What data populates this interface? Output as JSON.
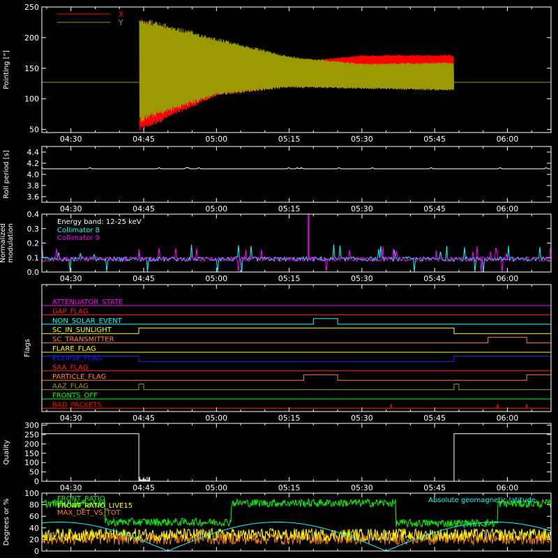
{
  "colors": {
    "background": "#000000",
    "axes": "#ffffff",
    "x_series": "#ff0000",
    "y_series": "#9a9a00",
    "collimator8": "#00ffff",
    "collimator9": "#ff00ff",
    "green": "#00ff00",
    "orange": "#ff8000",
    "cyan": "#00ffff",
    "yellow": "#ffff00"
  },
  "x_axis": {
    "start": "04:24",
    "end": "06:09",
    "tick_labels": [
      "04:30",
      "04:45",
      "05:00",
      "05:15",
      "05:30",
      "05:45",
      "06:00"
    ],
    "tick_minutes": [
      270,
      285,
      300,
      315,
      330,
      345,
      360
    ],
    "min_minutes": 264,
    "max_minutes": 369
  },
  "chart_data": [
    {
      "type": "line",
      "panel": "pointing",
      "ylabel": "Pointing [\"]",
      "ylim": [
        45,
        250
      ],
      "yticks": [
        50,
        100,
        150,
        200,
        250
      ],
      "legend": [
        {
          "name": "X",
          "color": "#ff0000"
        },
        {
          "name": "Y",
          "color": "#9a9a00"
        }
      ],
      "series": [
        {
          "name": "X",
          "baseline": 127,
          "oscillation_start": "04:44",
          "oscillation_end": "05:49",
          "envelope": [
            {
              "t": "04:44",
              "min": 45,
              "max": 235
            },
            {
              "t": "05:00",
              "min": 105,
              "max": 155
            },
            {
              "t": "05:15",
              "min": 120,
              "max": 160
            },
            {
              "t": "05:30",
              "min": 120,
              "max": 172
            },
            {
              "t": "05:49",
              "min": 120,
              "max": 172
            }
          ]
        },
        {
          "name": "Y",
          "baseline": 127,
          "oscillation_start": "04:44",
          "oscillation_end": "05:49",
          "envelope": [
            {
              "t": "04:44",
              "min": 60,
              "max": 235
            },
            {
              "t": "05:00",
              "min": 105,
              "max": 200
            },
            {
              "t": "05:15",
              "min": 118,
              "max": 170
            },
            {
              "t": "05:30",
              "min": 116,
              "max": 158
            },
            {
              "t": "05:49",
              "min": 113,
              "max": 160
            }
          ]
        }
      ]
    },
    {
      "type": "line",
      "panel": "roll_period",
      "ylabel": "Roll period [s]",
      "ylim": [
        3.5,
        4.5
      ],
      "yticks": [
        3.6,
        3.8,
        4.0,
        4.2,
        4.4
      ],
      "ytick_labels": [
        "3.6",
        "3.8",
        "4.0",
        "4.2",
        "4.4"
      ],
      "series": [
        {
          "name": "",
          "constant": 4.1
        }
      ]
    },
    {
      "type": "line",
      "panel": "modulation",
      "ylabel": "Normalized modulation",
      "ylim": [
        0,
        0.4
      ],
      "yticks": [
        0,
        0.1,
        0.2,
        0.3,
        0.4
      ],
      "ytick_labels": [
        "0.0",
        "0.1",
        "0.2",
        "0.3",
        "0.4"
      ],
      "legend_title": "Energy band: 12-25 keV",
      "series": [
        {
          "name": "Collimator 8",
          "color": "#00ffff",
          "baseline": 0.09
        },
        {
          "name": "Collimator 9",
          "color": "#ff00ff",
          "baseline": 0.09,
          "spikes": [
            {
              "t": "05:19",
              "value": 0.4
            }
          ]
        }
      ]
    },
    {
      "type": "line",
      "panel": "flags",
      "ylabel": "Flags",
      "flags": [
        {
          "label": "ATTENUATOR_STATE",
          "color": "#ff00ff",
          "on": []
        },
        {
          "label": "GAP_FLAG",
          "color": "#ff2020",
          "on": []
        },
        {
          "label": "NON_SOLAR_EVENT",
          "color": "#00ffff",
          "on": [
            [
              "05:20",
              "05:25"
            ]
          ]
        },
        {
          "label": "SC_IN_SUNLIGHT",
          "color": "#ffff00",
          "on": [
            [
              "04:44",
              "05:49"
            ]
          ]
        },
        {
          "label": "SC_TRANSMITTER",
          "color": "#ff8040",
          "on": [
            [
              "05:56",
              "06:04"
            ]
          ]
        },
        {
          "label": "FLARE_FLAG",
          "color": "#ffff00",
          "on": []
        },
        {
          "label": "ECLIPSE_FLAG",
          "color": "#2020ff",
          "on": [
            [
              "04:24",
              "04:44"
            ],
            [
              "05:49",
              "06:09"
            ]
          ]
        },
        {
          "label": "SAA_FLAG",
          "color": "#ff2020",
          "on": []
        },
        {
          "label": "PARTICLE_FLAG",
          "color": "#ff8040",
          "on": [
            [
              "05:18",
              "05:25"
            ],
            [
              "06:04",
              "06:09"
            ]
          ]
        },
        {
          "label": "AAZ_FLAG",
          "color": "#9a9a00",
          "on": [
            [
              "04:44",
              "04:45"
            ],
            [
              "05:49",
              "05:50"
            ]
          ]
        },
        {
          "label": "FRONTS_OFF",
          "color": "#00ff00",
          "on": []
        },
        {
          "label": "BAD_PACKETS",
          "color": "#ff0000",
          "spikes": [
            "05:36",
            "05:58",
            "06:04"
          ]
        }
      ]
    },
    {
      "type": "line",
      "panel": "quality",
      "ylabel": "Quality",
      "ylim": [
        0,
        310
      ],
      "yticks": [
        0,
        50,
        100,
        150,
        200,
        250,
        300
      ],
      "series": [
        {
          "name": "",
          "segments": [
            {
              "from": "04:24",
              "to": "04:44",
              "value": 255
            },
            {
              "from": "04:44",
              "to": "05:49",
              "value": 0
            },
            {
              "from": "05:49",
              "to": "06:09",
              "value": 255
            }
          ]
        }
      ]
    },
    {
      "type": "line",
      "panel": "ancillary",
      "ylabel": "Degrees or %",
      "ylim": [
        0,
        100
      ],
      "yticks": [
        0,
        20,
        40,
        60,
        80,
        100
      ],
      "series": [
        {
          "name": "FRONT_RATIO",
          "color": "#00ff00",
          "levels": [
            {
              "from": "04:24",
              "to": "04:37",
              "value": 82
            },
            {
              "from": "04:37",
              "to": "05:03",
              "value": 50
            },
            {
              "from": "05:03",
              "to": "05:37",
              "value": 83
            },
            {
              "from": "05:37",
              "to": "05:58",
              "value": 48
            },
            {
              "from": "05:58",
              "to": "06:09",
              "value": 82
            }
          ]
        },
        {
          "name": "FRONT_RATIO_LIVE15",
          "color": "#ffff00",
          "approx": 28
        },
        {
          "name": "MAX_DET_VS_TOT",
          "color": "#ff8000",
          "approx": 22
        },
        {
          "name": "Absolute geomagnetic latitude",
          "color": "#00ffff",
          "peaks": [
            {
              "t": "04:28",
              "value": 48
            },
            {
              "t": "05:12",
              "value": 50
            },
            {
              "t": "05:58",
              "value": 49
            }
          ],
          "troughs": [
            {
              "t": "04:50",
              "value": 0
            },
            {
              "t": "05:35",
              "value": 0
            }
          ]
        }
      ]
    }
  ]
}
